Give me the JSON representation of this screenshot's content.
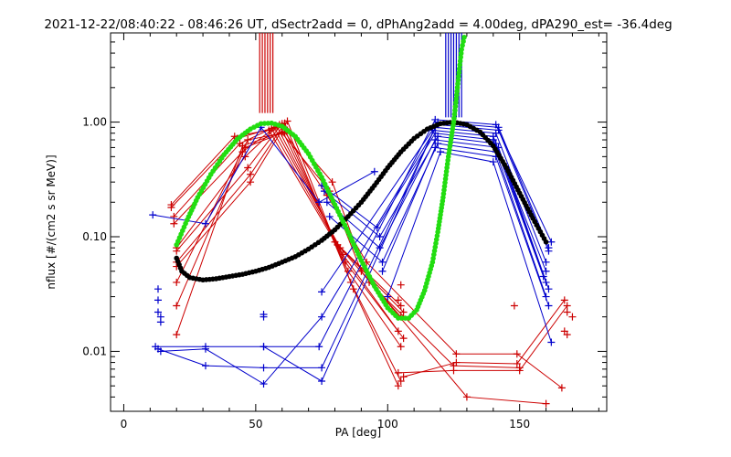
{
  "chart_data": {
    "type": "line",
    "title": "2021-12-22/08:40:22 - 08:46:26 UT, dSectr2add = 0, dPhAng2add = 4.00deg, dPA290_est= -36.4deg",
    "xlabel": "PA [deg]",
    "ylabel": "nflux [#/(cm2 s sr MeV)]",
    "xlim": [
      -5,
      183
    ],
    "ylim": [
      0.003,
      6.0
    ],
    "yscale": "log",
    "xticks": [
      0,
      50,
      100,
      150
    ],
    "xtick_labels": [
      "0",
      "50",
      "100",
      "150"
    ],
    "yticks": [
      0.01,
      0.1,
      1.0
    ],
    "ytick_labels": [
      "0.01",
      "0.10",
      "1.00"
    ],
    "grid": false,
    "legend": "none",
    "colors": {
      "red": "#cc0000",
      "blue": "#0000cc",
      "green": "#22dd11",
      "black": "#000000"
    },
    "vlines": {
      "red": {
        "x": [
          51.5,
          52.5,
          53.5,
          54.5,
          55.5,
          56.5
        ],
        "y_from": 1.2,
        "y_to": 6.0
      },
      "blue": {
        "x": [
          122,
          123,
          124,
          125,
          126,
          127,
          128
        ],
        "y_from": 1.1,
        "y_to": 6.0
      }
    },
    "series": [
      {
        "color": "red",
        "style": "line",
        "points": [
          [
            18,
            0.19
          ],
          [
            42,
            0.75
          ],
          [
            55,
            0.85
          ],
          [
            80,
            0.09
          ],
          [
            105,
            0.025
          ]
        ]
      },
      {
        "color": "red",
        "style": "line",
        "points": [
          [
            18,
            0.18
          ],
          [
            43,
            0.72
          ],
          [
            56,
            0.88
          ],
          [
            81,
            0.085
          ],
          [
            106,
            0.022
          ]
        ]
      },
      {
        "color": "red",
        "style": "line",
        "points": [
          [
            19,
            0.15
          ],
          [
            44,
            0.65
          ],
          [
            57,
            0.9
          ],
          [
            82,
            0.08
          ],
          [
            105,
            0.02
          ]
        ]
      },
      {
        "color": "red",
        "style": "line",
        "points": [
          [
            19,
            0.13
          ],
          [
            45,
            0.55
          ],
          [
            58,
            0.92
          ],
          [
            83,
            0.07
          ],
          [
            104,
            0.015
          ]
        ]
      },
      {
        "color": "red",
        "style": "line",
        "points": [
          [
            20,
            0.08
          ],
          [
            46,
            0.5
          ],
          [
            59,
            0.95
          ],
          [
            84,
            0.06
          ],
          [
            106,
            0.013
          ]
        ]
      },
      {
        "color": "red",
        "style": "line",
        "points": [
          [
            20,
            0.075
          ],
          [
            47,
            0.4
          ],
          [
            60,
            0.97
          ],
          [
            85,
            0.05
          ],
          [
            105,
            0.011
          ]
        ]
      },
      {
        "color": "red",
        "style": "line",
        "points": [
          [
            20,
            0.06
          ],
          [
            48,
            0.35
          ],
          [
            61,
            0.98
          ],
          [
            86,
            0.04
          ],
          [
            105,
            0.0055
          ]
        ]
      },
      {
        "color": "red",
        "style": "line",
        "points": [
          [
            20,
            0.055
          ],
          [
            48,
            0.3
          ],
          [
            62,
            1.02
          ],
          [
            87,
            0.035
          ],
          [
            104,
            0.005
          ]
        ]
      },
      {
        "color": "red",
        "style": "line",
        "points": [
          [
            20,
            0.04
          ],
          [
            47,
            0.7
          ],
          [
            60,
            0.8
          ],
          [
            78,
            0.25
          ],
          [
            90,
            0.05
          ],
          [
            130,
            0.004
          ],
          [
            160,
            0.0035
          ]
        ]
      },
      {
        "color": "red",
        "style": "line",
        "points": [
          [
            20,
            0.025
          ],
          [
            46,
            0.6
          ],
          [
            61,
            0.82
          ],
          [
            77,
            0.23
          ],
          [
            92,
            0.06
          ],
          [
            126,
            0.0095
          ],
          [
            149,
            0.0095
          ],
          [
            166,
            0.0048
          ]
        ]
      },
      {
        "color": "red",
        "style": "line",
        "points": [
          [
            20,
            0.014
          ],
          [
            45,
            0.62
          ],
          [
            62,
            0.85
          ],
          [
            79,
            0.3
          ],
          [
            93,
            0.04
          ],
          [
            125,
            0.0075
          ],
          [
            150,
            0.0072
          ]
        ]
      },
      {
        "color": "red",
        "style": "line",
        "points": [
          [
            104,
            0.0065
          ],
          [
            125,
            0.0068
          ],
          [
            150,
            0.0068
          ],
          [
            168,
            0.025
          ]
        ]
      },
      {
        "color": "red",
        "style": "line",
        "points": [
          [
            106,
            0.006
          ],
          [
            126,
            0.008
          ],
          [
            149,
            0.0078
          ],
          [
            167,
            0.028
          ]
        ]
      },
      {
        "color": "red",
        "style": "markers",
        "points": [
          [
            148,
            0.025
          ],
          [
            168,
            0.022
          ],
          [
            170,
            0.02
          ],
          [
            167,
            0.015
          ],
          [
            168,
            0.014
          ],
          [
            105,
            0.038
          ],
          [
            104,
            0.028
          ]
        ]
      },
      {
        "color": "blue",
        "style": "line",
        "points": [
          [
            11,
            0.155
          ],
          [
            31,
            0.13
          ],
          [
            52,
            0.9
          ],
          [
            74,
            0.2
          ],
          [
            95,
            0.37
          ]
        ]
      },
      {
        "color": "blue",
        "style": "line",
        "points": [
          [
            12,
            0.011
          ],
          [
            31,
            0.011
          ],
          [
            53,
            0.011
          ],
          [
            74,
            0.011
          ],
          [
            118,
            1.05
          ],
          [
            141,
            0.95
          ],
          [
            162,
            0.09
          ]
        ]
      },
      {
        "color": "blue",
        "style": "line",
        "points": [
          [
            13,
            0.0105
          ],
          [
            31,
            0.0075
          ],
          [
            53,
            0.0072
          ],
          [
            75,
            0.0072
          ],
          [
            119,
            1.0
          ],
          [
            142,
            0.9
          ],
          [
            161,
            0.08
          ]
        ]
      },
      {
        "color": "blue",
        "style": "line",
        "points": [
          [
            14,
            0.01
          ],
          [
            31,
            0.0105
          ],
          [
            53,
            0.0052
          ],
          [
            75,
            0.02
          ],
          [
            119,
            0.95
          ],
          [
            142,
            0.85
          ],
          [
            161,
            0.075
          ]
        ]
      },
      {
        "color": "blue",
        "style": "line",
        "points": [
          [
            53,
            0.011
          ],
          [
            75,
            0.0055
          ],
          [
            118,
            0.9
          ],
          [
            141,
            0.8
          ],
          [
            160,
            0.06
          ]
        ]
      },
      {
        "color": "blue",
        "style": "line",
        "points": [
          [
            75,
            0.033
          ],
          [
            117,
            0.85
          ],
          [
            140,
            0.75
          ],
          [
            160,
            0.05
          ]
        ]
      },
      {
        "color": "blue",
        "style": "line",
        "points": [
          [
            75,
            0.28
          ],
          [
            96,
            0.12
          ],
          [
            118,
            0.8
          ],
          [
            140,
            0.7
          ],
          [
            159,
            0.045
          ]
        ]
      },
      {
        "color": "blue",
        "style": "line",
        "points": [
          [
            76,
            0.25
          ],
          [
            97,
            0.1
          ],
          [
            119,
            0.75
          ],
          [
            141,
            0.65
          ],
          [
            160,
            0.04
          ]
        ]
      },
      {
        "color": "blue",
        "style": "line",
        "points": [
          [
            77,
            0.2
          ],
          [
            97,
            0.08
          ],
          [
            118,
            0.7
          ],
          [
            142,
            0.6
          ],
          [
            161,
            0.035
          ]
        ]
      },
      {
        "color": "blue",
        "style": "line",
        "points": [
          [
            78,
            0.15
          ],
          [
            98,
            0.06
          ],
          [
            119,
            0.65
          ],
          [
            141,
            0.55
          ],
          [
            160,
            0.03
          ]
        ]
      },
      {
        "color": "blue",
        "style": "line",
        "points": [
          [
            98,
            0.05
          ],
          [
            118,
            0.6
          ],
          [
            141,
            0.5
          ],
          [
            161,
            0.025
          ]
        ]
      },
      {
        "color": "blue",
        "style": "line",
        "points": [
          [
            100,
            0.03
          ],
          [
            120,
            0.55
          ],
          [
            140,
            0.45
          ],
          [
            162,
            0.012
          ]
        ]
      },
      {
        "color": "blue",
        "style": "markers",
        "points": [
          [
            13,
            0.035
          ],
          [
            13,
            0.028
          ],
          [
            13,
            0.022
          ],
          [
            14,
            0.02
          ],
          [
            14,
            0.018
          ],
          [
            53,
            0.021
          ],
          [
            53,
            0.02
          ]
        ]
      },
      {
        "color": "black",
        "style": "dots",
        "points": [
          [
            20,
            0.065
          ],
          [
            22,
            0.05
          ],
          [
            25,
            0.044
          ],
          [
            30,
            0.042
          ],
          [
            35,
            0.043
          ],
          [
            40,
            0.045
          ],
          [
            45,
            0.047
          ],
          [
            50,
            0.05
          ],
          [
            55,
            0.054
          ],
          [
            60,
            0.06
          ],
          [
            65,
            0.067
          ],
          [
            70,
            0.078
          ],
          [
            75,
            0.093
          ],
          [
            80,
            0.115
          ],
          [
            85,
            0.15
          ],
          [
            90,
            0.2
          ],
          [
            95,
            0.28
          ],
          [
            100,
            0.4
          ],
          [
            105,
            0.55
          ],
          [
            110,
            0.72
          ],
          [
            115,
            0.87
          ],
          [
            120,
            0.97
          ],
          [
            125,
            1.0
          ],
          [
            130,
            0.95
          ],
          [
            135,
            0.82
          ],
          [
            140,
            0.62
          ],
          [
            145,
            0.4
          ],
          [
            150,
            0.24
          ],
          [
            155,
            0.145
          ],
          [
            160,
            0.09
          ]
        ]
      },
      {
        "color": "green",
        "style": "dots",
        "points": [
          [
            20,
            0.085
          ],
          [
            24,
            0.14
          ],
          [
            28,
            0.22
          ],
          [
            33,
            0.35
          ],
          [
            38,
            0.52
          ],
          [
            43,
            0.71
          ],
          [
            48,
            0.87
          ],
          [
            52,
            0.97
          ],
          [
            56,
            0.98
          ],
          [
            60,
            0.92
          ],
          [
            65,
            0.75
          ],
          [
            70,
            0.53
          ],
          [
            75,
            0.33
          ],
          [
            80,
            0.19
          ],
          [
            85,
            0.11
          ],
          [
            90,
            0.062
          ],
          [
            95,
            0.037
          ],
          [
            100,
            0.024
          ],
          [
            104,
            0.0195
          ],
          [
            108,
            0.0195
          ],
          [
            111,
            0.023
          ],
          [
            114,
            0.034
          ],
          [
            117,
            0.06
          ],
          [
            119,
            0.11
          ],
          [
            121,
            0.22
          ],
          [
            123,
            0.5
          ],
          [
            125,
            1.0
          ],
          [
            126,
            1.6
          ],
          [
            127,
            2.7
          ],
          [
            128,
            4.3
          ],
          [
            129,
            5.5
          ]
        ]
      }
    ]
  }
}
